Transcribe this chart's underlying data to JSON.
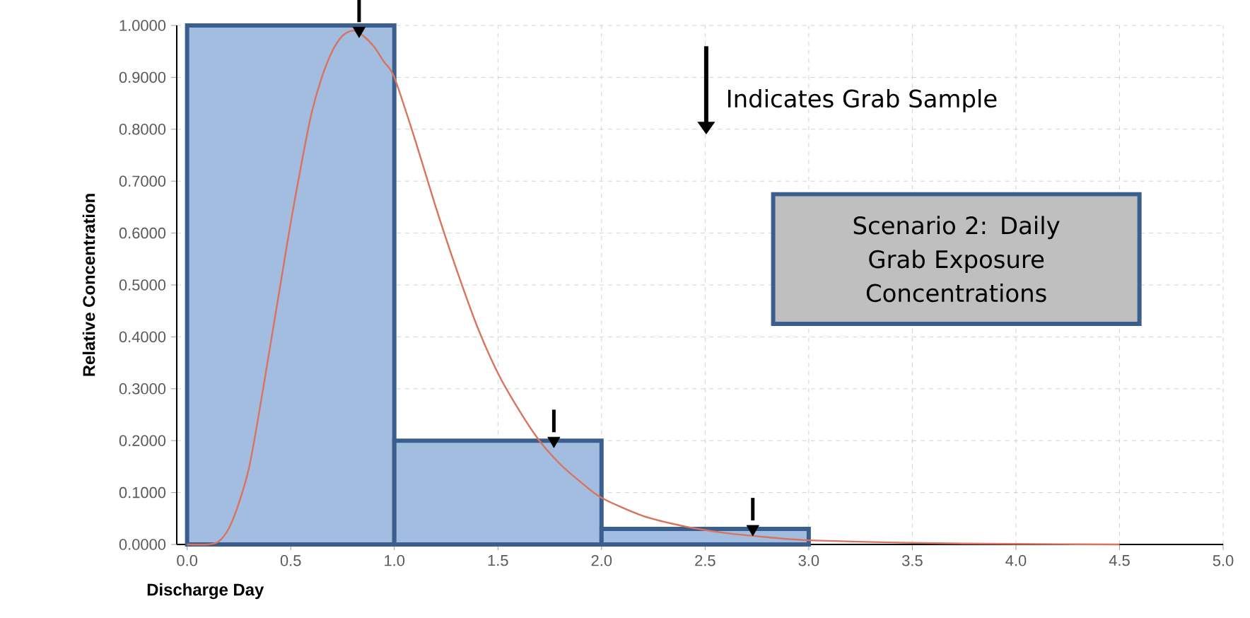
{
  "chart_data": {
    "type": "histogram",
    "xlabel": "Discharge Day",
    "ylabel": "Relative Concentration",
    "bins": [
      0,
      1,
      2,
      3
    ],
    "values": [
      1.0,
      0.2,
      0.03
    ],
    "color": "#a3bde0",
    "series": [
      {
        "type": "line",
        "color": "#d9735e",
        "x": [
          0.0,
          0.1,
          0.15,
          0.2,
          0.25,
          0.3,
          0.35,
          0.4,
          0.45,
          0.5,
          0.55,
          0.6,
          0.65,
          0.7,
          0.75,
          0.8,
          0.85,
          0.9,
          0.95,
          1.0,
          1.1,
          1.2,
          1.3,
          1.4,
          1.5,
          1.6,
          1.7,
          1.8,
          1.9,
          2.0,
          2.2,
          2.4,
          2.6,
          2.8,
          3.0,
          3.5,
          4.0,
          4.5
        ],
        "values": [
          0.0,
          0.0,
          0.005,
          0.03,
          0.08,
          0.15,
          0.26,
          0.38,
          0.5,
          0.62,
          0.73,
          0.83,
          0.9,
          0.95,
          0.98,
          0.99,
          0.98,
          0.96,
          0.93,
          0.9,
          0.78,
          0.65,
          0.53,
          0.42,
          0.33,
          0.26,
          0.2,
          0.155,
          0.12,
          0.09,
          0.055,
          0.035,
          0.022,
          0.014,
          0.008,
          0.003,
          0.001,
          0.0
        ]
      },
      {
        "type": "scatter",
        "color": "#000000",
        "marker": "triangle",
        "x": [
          0.83,
          1.77,
          2.73
        ],
        "values": [
          0.99,
          0.2,
          0.03
        ]
      }
    ],
    "xlim": [
      -0.05,
      5.0
    ],
    "ylim": [
      0,
      1.0
    ],
    "xticks": [
      {
        "value": 0,
        "label": "0.0"
      },
      0.5,
      {
        "value": 1,
        "label": "1.0"
      },
      1.5,
      {
        "value": 2,
        "label": "2.0"
      },
      2.5,
      {
        "value": 3,
        "label": "3.0"
      },
      3.5,
      {
        "value": 4,
        "label": "4.0"
      },
      4.5,
      {
        "value": 5,
        "label": "5.0"
      }
    ],
    "yticks": [
      {
        "value": 0,
        "label": "0.0000"
      },
      {
        "value": 0.1,
        "label": "0.1000"
      },
      {
        "value": 0.2,
        "label": "0.2000"
      },
      {
        "value": 0.3,
        "label": "0.3000"
      },
      {
        "value": 0.4,
        "label": "0.4000"
      },
      {
        "value": 0.5,
        "label": "0.5000"
      },
      {
        "value": 0.6,
        "label": "0.6000"
      },
      {
        "value": 0.7,
        "label": "0.7000"
      },
      {
        "value": 0.8,
        "label": "0.8000"
      },
      {
        "value": 0.9,
        "label": "0.9000"
      },
      {
        "value": 1.0,
        "label": "1.0000"
      }
    ],
    "grid": true,
    "annotations": [
      "Indicates Grab Sample",
      "Scenario 2: Daily Grab Exposure Concentrations"
    ]
  }
}
